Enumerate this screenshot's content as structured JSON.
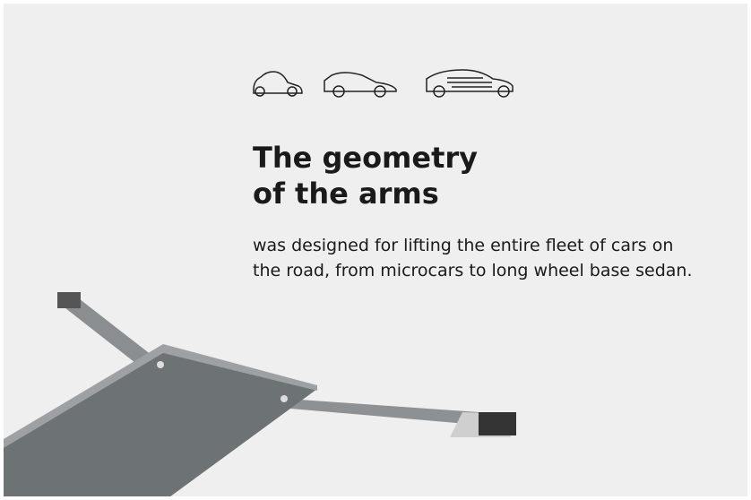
{
  "heading": {
    "line1": "The geometry",
    "line2": "of the arms"
  },
  "body": "was designed for lifting the entire fleet of cars on the road, from microcars to long wheel base sedan."
}
